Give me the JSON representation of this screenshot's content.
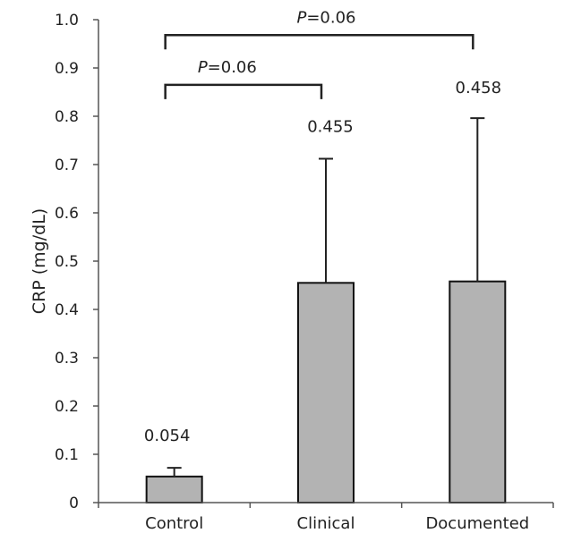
{
  "chart_data": {
    "type": "bar",
    "ylabel": "CRP (mg/dL)",
    "ylim": [
      0,
      1.0
    ],
    "yticks": [
      "0",
      "0.1",
      "0.2",
      "0.3",
      "0.4",
      "0.5",
      "0.6",
      "0.7",
      "0.8",
      "0.9",
      "1.0"
    ],
    "categories": [
      "Control",
      "Clinical",
      "Documented"
    ],
    "values": [
      0.054,
      0.455,
      0.458
    ],
    "value_labels": [
      "0.054",
      "0.455",
      "0.458"
    ],
    "error_upper": [
      0.072,
      0.712,
      0.796
    ],
    "bar_color": "#b3b3b3",
    "comparisons": [
      {
        "from": "Control",
        "to": "Clinical",
        "label": "P=0.06",
        "p": "P",
        "rest": "=0.06"
      },
      {
        "from": "Control",
        "to": "Documented",
        "label": "P=0.06",
        "p": "P",
        "rest": "=0.06"
      }
    ]
  }
}
